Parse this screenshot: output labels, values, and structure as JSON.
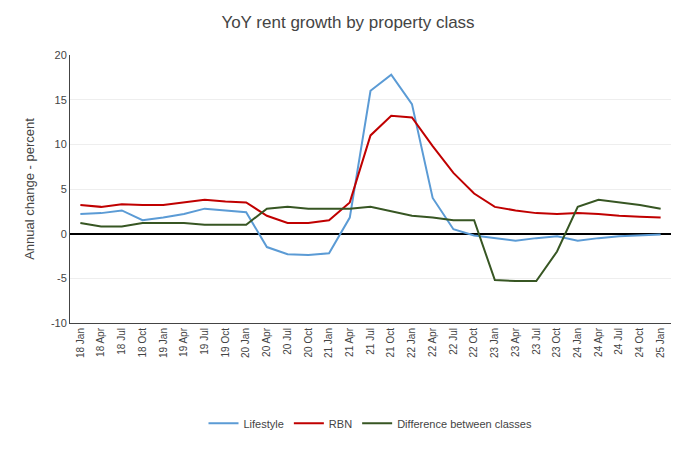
{
  "chart_data": {
    "type": "line",
    "title": "YoY rent growth by property class",
    "ylabel": "Annual change - percent",
    "categories": [
      "18 Jan",
      "18 Apr",
      "18 Jul",
      "18 Oct",
      "19 Jan",
      "19 Apr",
      "19 Jul",
      "19 Oct",
      "20 Jan",
      "20 Apr",
      "20 Jul",
      "20 Oct",
      "21 Jan",
      "21 Apr",
      "21 Jul",
      "21 Oct",
      "22 Jan",
      "22 Apr",
      "22 Jul",
      "22 Oct",
      "23 Jan",
      "23 Apr",
      "23 Jul",
      "23 Oct",
      "24 Jan",
      "24 Apr",
      "24 Jul",
      "24 Oct",
      "25 Jan"
    ],
    "series": [
      {
        "name": "Lifestyle",
        "color": "#5B9BD5",
        "values": [
          2.2,
          2.3,
          2.6,
          1.5,
          1.8,
          2.2,
          2.8,
          2.6,
          2.4,
          -1.5,
          -2.3,
          -2.4,
          -2.2,
          1.8,
          16.0,
          17.8,
          14.5,
          4.0,
          0.5,
          -0.2,
          -0.5,
          -0.8,
          -0.5,
          -0.3,
          -0.8,
          -0.5,
          -0.3,
          -0.2,
          -0.1
        ]
      },
      {
        "name": "RBN",
        "color": "#C00000",
        "values": [
          3.2,
          3.0,
          3.3,
          3.2,
          3.2,
          3.5,
          3.8,
          3.6,
          3.5,
          2.0,
          1.2,
          1.2,
          1.5,
          3.5,
          11.0,
          13.2,
          13.0,
          9.8,
          6.8,
          4.5,
          3.0,
          2.6,
          2.3,
          2.2,
          2.3,
          2.2,
          2.0,
          1.9,
          1.8
        ]
      },
      {
        "name": "Difference between classes",
        "color": "#375623",
        "values": [
          1.2,
          0.8,
          0.8,
          1.2,
          1.2,
          1.2,
          1.0,
          1.0,
          1.0,
          2.8,
          3.0,
          2.8,
          2.8,
          2.8,
          3.0,
          2.5,
          2.0,
          1.8,
          1.5,
          1.5,
          -5.2,
          -5.3,
          -5.3,
          -2.0,
          3.0,
          3.8,
          3.5,
          3.2,
          2.8
        ]
      }
    ],
    "ylim": [
      -10,
      20
    ],
    "yticks": [
      -10,
      -5,
      0,
      5,
      10,
      15,
      20
    ],
    "grid": true,
    "legend": "bottom"
  }
}
